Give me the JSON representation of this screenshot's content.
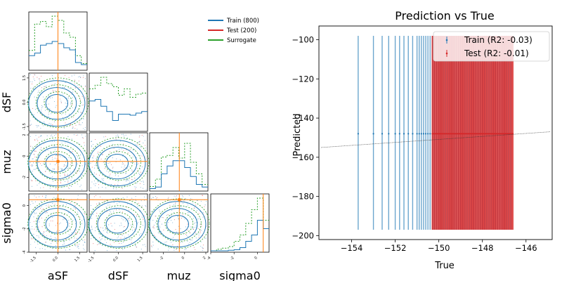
{
  "corner": {
    "params": [
      "aSF",
      "dSF",
      "muz",
      "sigma0"
    ],
    "legend": [
      {
        "label": "Train (800)",
        "color": "#1f77b4"
      },
      {
        "label": "Test (200)",
        "color": "#d62728"
      },
      {
        "label": "Surrogate",
        "color": "#2ca02c"
      }
    ],
    "truth_color": "#ff7f0e",
    "truths": {
      "aSF": 0.0,
      "dSF": null,
      "muz": -0.5,
      "sigma0": 0.5
    },
    "ranges": {
      "aSF": [
        -2.0,
        2.0
      ],
      "dSF": [
        -1.8,
        1.8
      ],
      "muz": [
        -3.3,
        2.2
      ],
      "sigma0": [
        -4.0,
        1.0
      ]
    },
    "ticks": {
      "aSF": [
        "-1.5",
        "0.0",
        "1.5"
      ],
      "dSF": [
        "-1.5",
        "0.0",
        "1.5"
      ],
      "muz": [
        "-2",
        "0",
        "2"
      ],
      "sigma0": [
        "-4",
        "-2",
        "0"
      ]
    },
    "tick_values": {
      "aSF": [
        -1.5,
        0.0,
        1.5
      ],
      "dSF": [
        -1.5,
        0.0,
        1.5
      ],
      "muz": [
        -2,
        0,
        2
      ],
      "sigma0": [
        -4,
        -2,
        0
      ]
    },
    "histograms": {
      "aSF": {
        "train": [
          0.25,
          0.3,
          0.45,
          0.48,
          0.52,
          0.48,
          0.4,
          0.36,
          0.12,
          0.08
        ],
        "surrogate": [
          0.35,
          0.85,
          0.9,
          0.8,
          1.0,
          0.92,
          0.68,
          0.6,
          0.25,
          0.1
        ]
      },
      "dSF": {
        "train": [
          0.55,
          0.58,
          0.45,
          0.35,
          0.18,
          0.3,
          0.3,
          0.28,
          0.32,
          0.35
        ],
        "surrogate": [
          0.78,
          0.85,
          1.0,
          0.88,
          0.82,
          0.66,
          0.78,
          0.62,
          0.68,
          0.7
        ]
      },
      "muz": {
        "train": [
          0.02,
          0.05,
          0.3,
          0.45,
          0.55,
          0.55,
          0.42,
          0.25,
          0.1,
          0.05
        ],
        "surrogate": [
          0.06,
          0.2,
          0.62,
          0.65,
          0.8,
          0.6,
          0.88,
          0.52,
          0.3,
          0.1
        ]
      },
      "sigma0": {
        "train": [
          0.0,
          0.0,
          0.0,
          0.01,
          0.02,
          0.06,
          0.18,
          0.3,
          0.58,
          0.42
        ],
        "surrogate": [
          0.0,
          0.03,
          0.05,
          0.08,
          0.18,
          0.3,
          0.52,
          0.78,
          1.0,
          0.58
        ]
      }
    }
  },
  "scatter": {
    "title": "Prediction vs True",
    "xlabel": "True",
    "ylabel": "Predicted",
    "xlim": [
      -155.5,
      -144.8
    ],
    "ylim": [
      -202,
      -93
    ],
    "xticks": [
      -154,
      -152,
      -150,
      -148,
      -146
    ],
    "yticks": [
      -100,
      -120,
      -140,
      -160,
      -180,
      -200
    ],
    "legend": [
      {
        "label": "Train (R2: -0.03)",
        "color": "#1f77b4"
      },
      {
        "label": "Test (R2: -0.01)",
        "color": "#d62728"
      }
    ],
    "prediction": -148.0,
    "error_low": -197.0,
    "error_high": -98.0,
    "train_x": [
      -153.7,
      -153.0,
      -152.6,
      -152.3,
      -152.0,
      -151.8,
      -151.6,
      -151.4,
      -151.2,
      -151.0,
      -150.9,
      -150.8,
      -150.7,
      -150.6,
      -150.5,
      -150.4,
      -150.3,
      -150.2,
      -150.1,
      -150.0,
      -149.9,
      -149.8,
      -149.7,
      -149.6,
      -149.5,
      -149.4,
      -149.3,
      -149.2,
      -149.1,
      -149.0,
      -148.9,
      -148.8,
      -148.7,
      -148.6,
      -148.5,
      -148.4,
      -148.3,
      -148.2,
      -148.1,
      -148.0,
      -147.9,
      -147.8,
      -147.7,
      -147.6,
      -147.5,
      -147.4,
      -147.3,
      -147.2,
      -147.1,
      -147.0,
      -146.9,
      -146.8,
      -146.7
    ],
    "test_range": [
      -150.3,
      -146.6
    ],
    "test_step": 0.05,
    "fit_line": {
      "x": [
        -155.4,
        -144.9
      ],
      "y": [
        -155.0,
        -147.0
      ]
    },
    "fit_color": "#333333"
  }
}
